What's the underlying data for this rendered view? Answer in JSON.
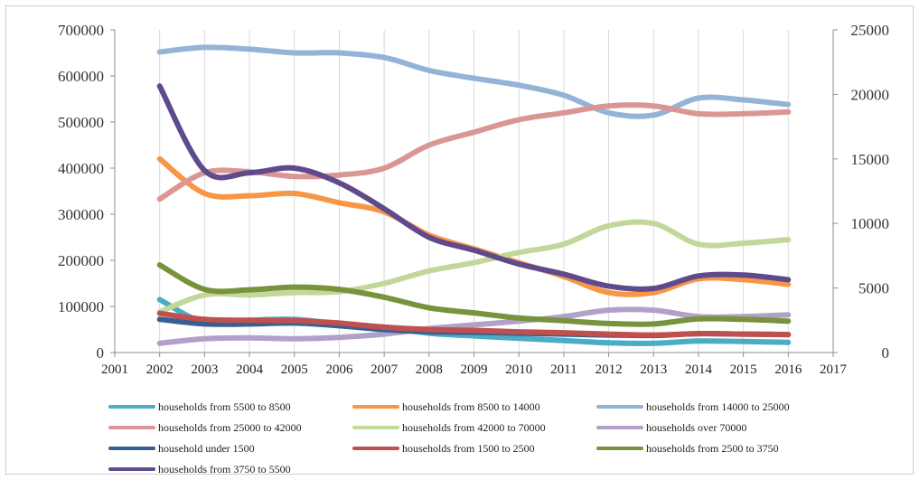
{
  "chart_data": {
    "type": "line",
    "title": "",
    "xlabel": "",
    "ylabel_left": "",
    "ylabel_right": "",
    "x_categories": [
      "2001",
      "2002",
      "2003",
      "2004",
      "2005",
      "2006",
      "2007",
      "2008",
      "2009",
      "2010",
      "2011",
      "2012",
      "2013",
      "2014",
      "2015",
      "2016",
      "2017"
    ],
    "ylim_left": [
      0,
      700000
    ],
    "yticks_left": [
      "0",
      "100000",
      "200000",
      "300000",
      "400000",
      "500000",
      "600000",
      "700000"
    ],
    "ylim_right": [
      0,
      25000
    ],
    "yticks_right": [
      "0",
      "5000",
      "10000",
      "15000",
      "20000",
      "25000"
    ],
    "grid": "vertical gridlines only",
    "legend_position": "bottom",
    "x": [
      2002,
      2003,
      2004,
      2005,
      2006,
      2007,
      2008,
      2009,
      2010,
      2011,
      2012,
      2013,
      2014,
      2015,
      2016
    ],
    "series": [
      {
        "name": "households from 5500 to 8500",
        "axis": "left",
        "color": "#4bacc6",
        "values": [
          115000,
          65000,
          70000,
          72000,
          62000,
          55000,
          42000,
          36000,
          31000,
          26000,
          21000,
          20000,
          25000,
          24000,
          22000
        ]
      },
      {
        "name": "households from 8500 to 14000",
        "axis": "left",
        "color": "#f79646",
        "values": [
          420000,
          345000,
          340000,
          345000,
          325000,
          305000,
          255000,
          225000,
          195000,
          165000,
          130000,
          130000,
          160000,
          158000,
          148000
        ]
      },
      {
        "name": "households from 14000 to 25000",
        "axis": "left",
        "color": "#95b3d7",
        "values": [
          652000,
          662000,
          658000,
          650000,
          650000,
          640000,
          612000,
          595000,
          580000,
          558000,
          520000,
          515000,
          552000,
          548000,
          538000
        ]
      },
      {
        "name": "households from 25000 to 42000",
        "axis": "left",
        "color": "#da9694",
        "values": [
          333000,
          390000,
          392000,
          382000,
          385000,
          400000,
          450000,
          478000,
          505000,
          520000,
          535000,
          535000,
          518000,
          518000,
          522000
        ]
      },
      {
        "name": "households from 42000 to 70000",
        "axis": "left",
        "color": "#c4d79b",
        "values": [
          88000,
          125000,
          125000,
          130000,
          132000,
          150000,
          177000,
          195000,
          217000,
          235000,
          275000,
          280000,
          235000,
          237000,
          245000
        ]
      },
      {
        "name": "households over 70000",
        "axis": "left",
        "color": "#b1a0c7",
        "values": [
          20000,
          30000,
          32000,
          30000,
          33000,
          40000,
          52000,
          60000,
          68000,
          78000,
          92000,
          92000,
          78000,
          78000,
          82000
        ]
      },
      {
        "name": "household under 1500",
        "axis": "left",
        "color": "#366092",
        "values": [
          72000,
          62000,
          62000,
          64000,
          58000,
          50000,
          45000,
          44000,
          42000,
          40000,
          38000,
          37000,
          41000,
          40000,
          39000
        ]
      },
      {
        "name": "households from 1500 to 2500",
        "axis": "left",
        "color": "#c0504d",
        "values": [
          85000,
          72000,
          70000,
          69000,
          64000,
          55000,
          50000,
          48000,
          45000,
          43000,
          40000,
          38000,
          41000,
          40000,
          39000
        ]
      },
      {
        "name": "households from 2500 to 3750",
        "axis": "left",
        "color": "#77933c",
        "values": [
          190000,
          137000,
          136000,
          142000,
          137000,
          120000,
          97000,
          86000,
          75000,
          69000,
          63000,
          62000,
          73000,
          72000,
          68000
        ]
      },
      {
        "name": "households from 3750 to 5500",
        "axis": "left",
        "color": "#5f4a8b",
        "values": [
          578000,
          395000,
          390000,
          400000,
          368000,
          312000,
          250000,
          222000,
          192000,
          170000,
          144000,
          139000,
          166000,
          168000,
          158000
        ]
      }
    ]
  }
}
